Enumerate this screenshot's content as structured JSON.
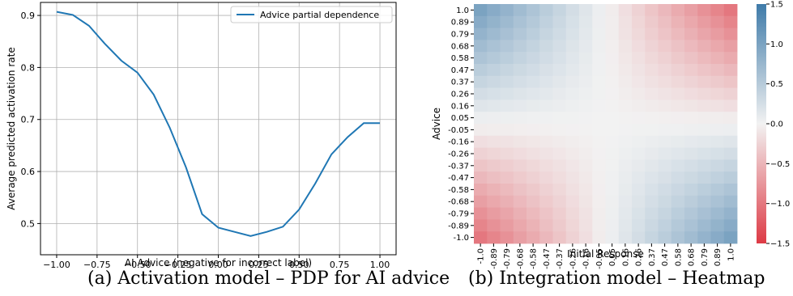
{
  "chart_data": [
    {
      "type": "line",
      "xlabel": "AI Advice (negative for incorrect label)",
      "ylabel": "Average predicted activation rate",
      "xlim": [
        -1.1,
        1.1
      ],
      "ylim": [
        0.44,
        0.925
      ],
      "grid": true,
      "legend_position": "top-right",
      "x_ticks": [
        -1.0,
        -0.75,
        -0.5,
        -0.25,
        0.0,
        0.25,
        0.5,
        0.75,
        1.0
      ],
      "x_tick_labels": [
        "−1.00",
        "−0.75",
        "−0.50",
        "−0.25",
        "0.00",
        "0.25",
        "0.50",
        "0.75",
        "1.00"
      ],
      "y_ticks": [
        0.5,
        0.6,
        0.7,
        0.8,
        0.9
      ],
      "y_tick_labels": [
        "0.5",
        "0.6",
        "0.7",
        "0.8",
        "0.9"
      ],
      "series": [
        {
          "name": "Advice partial dependence",
          "color": "#1f77b4",
          "x": [
            -1.0,
            -0.9,
            -0.8,
            -0.7,
            -0.6,
            -0.5,
            -0.4,
            -0.3,
            -0.2,
            -0.1,
            0.0,
            0.1,
            0.2,
            0.3,
            0.4,
            0.5,
            0.6,
            0.7,
            0.8,
            0.9,
            1.0
          ],
          "y": [
            0.907,
            0.901,
            0.88,
            0.845,
            0.813,
            0.79,
            0.748,
            0.684,
            0.608,
            0.518,
            0.492,
            0.484,
            0.476,
            0.484,
            0.494,
            0.527,
            0.577,
            0.633,
            0.666,
            0.693,
            0.693
          ]
        }
      ]
    },
    {
      "type": "heatmap",
      "xlabel": "Initial Response",
      "ylabel": "Advice",
      "x_labels": [
        "-1.0",
        "-0.89",
        "-0.79",
        "-0.68",
        "-0.58",
        "-0.47",
        "-0.37",
        "-0.26",
        "-0.16",
        "-0.05",
        "0.05",
        "0.16",
        "0.26",
        "0.37",
        "0.47",
        "0.58",
        "0.68",
        "0.79",
        "0.89",
        "1.0"
      ],
      "y_labels": [
        "1.0",
        "0.89",
        "0.79",
        "0.68",
        "0.58",
        "0.47",
        "0.37",
        "0.26",
        "0.16",
        "0.05",
        "-0.05",
        "-0.16",
        "-0.26",
        "-0.37",
        "-0.47",
        "-0.58",
        "-0.68",
        "-0.79",
        "-0.89",
        "-1.0"
      ],
      "value_rule": "value = -advice * initial_response",
      "vmin": -1.5,
      "vmax": 1.5,
      "colorbar_ticks": [
        1.5,
        1.0,
        0.5,
        0.0,
        -0.5,
        -1.0,
        -1.5
      ],
      "colorbar_tick_labels": [
        "1.5",
        "1.0",
        "0.5",
        "0.0",
        "−0.5",
        "−1.0",
        "−1.5"
      ],
      "colormap": {
        "negative": "#dd3a45",
        "zero": "#f2f2f2",
        "positive": "#3f7ba9"
      }
    }
  ],
  "captions": {
    "a": "(a) Activation model – PDP for AI advice",
    "b": "(b) Integration model – Heatmap"
  }
}
